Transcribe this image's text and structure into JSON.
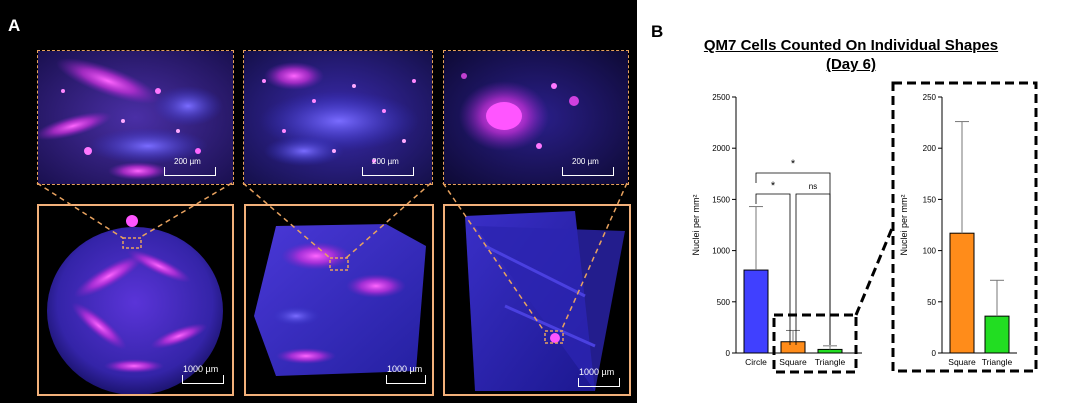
{
  "panel_a": {
    "label": "A",
    "top_images": [
      {
        "scale": "200 µm"
      },
      {
        "scale": "200 µm"
      },
      {
        "scale": "200 µm"
      }
    ],
    "bottom_images": [
      {
        "shape": "circle",
        "scale": "1000 µm"
      },
      {
        "shape": "square",
        "scale": "1000 µm"
      },
      {
        "shape": "triangle",
        "scale": "1000 µm"
      }
    ],
    "colors": {
      "frame": "#f2b07a",
      "dash": "#e8a25f",
      "stain_blue": "#3340ff",
      "stain_magenta": "#ff33ff"
    }
  },
  "panel_b": {
    "label": "B",
    "title_line1": "QM7 Cells Counted On Individual Shapes",
    "title_line2": "(Day 6)"
  },
  "chart_data": [
    {
      "type": "bar",
      "categories": [
        "Circle",
        "Square",
        "Triangle"
      ],
      "values": [
        810,
        110,
        35
      ],
      "errors": [
        620,
        110,
        35
      ],
      "colors": [
        "#4040ff",
        "#ff8c1a",
        "#22dd22"
      ],
      "ylabel": "Nuclei per mm²",
      "ylim": [
        0,
        2500
      ],
      "yticks": [
        "0",
        "500",
        "1000",
        "1500",
        "2000",
        "2500"
      ],
      "significance": [
        {
          "from": "Circle",
          "to": "Square",
          "label": "*"
        },
        {
          "from": "Circle",
          "to": "Triangle",
          "label": "*"
        },
        {
          "from": "Square",
          "to": "Triangle",
          "label": "ns"
        }
      ]
    },
    {
      "type": "bar",
      "categories": [
        "Square",
        "Triangle"
      ],
      "values": [
        117,
        36
      ],
      "errors": [
        109,
        35
      ],
      "colors": [
        "#ff8c1a",
        "#22dd22"
      ],
      "ylabel": "Nuclei per mm²",
      "ylim": [
        0,
        250
      ],
      "yticks": [
        "0",
        "50",
        "100",
        "150",
        "200",
        "250"
      ]
    }
  ]
}
